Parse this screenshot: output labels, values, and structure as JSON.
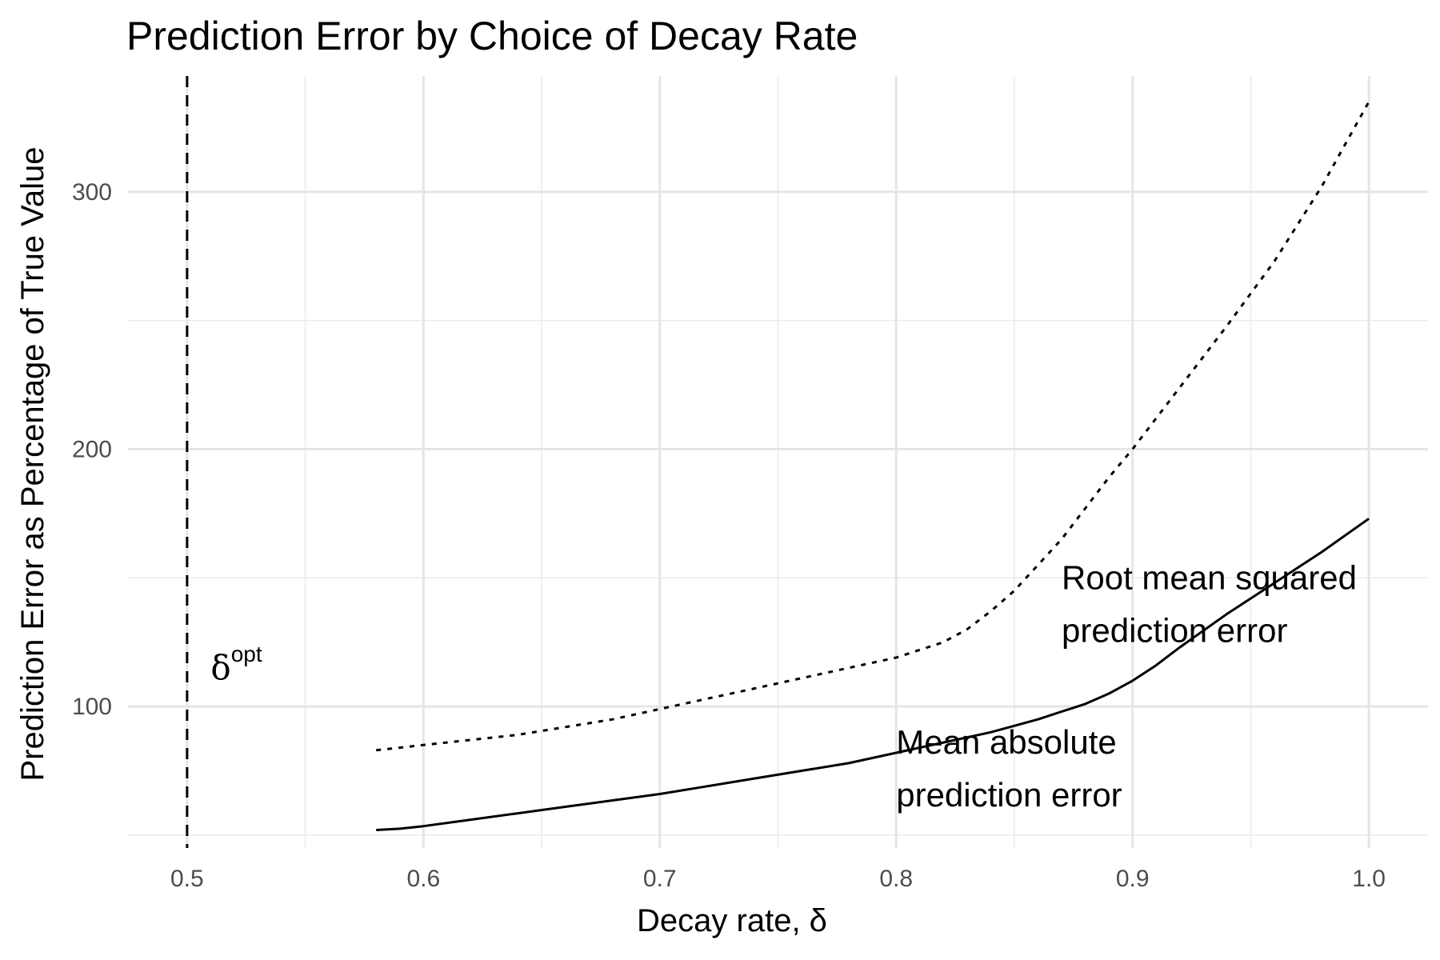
{
  "chart_data": {
    "type": "line",
    "title": "Prediction Error by Choice of Decay Rate",
    "xlabel": "Decay rate, δ",
    "ylabel": "Prediction Error as Percentage of True Value",
    "xlim": [
      0.475,
      1.025
    ],
    "ylim": [
      45,
      345
    ],
    "xticks": [
      0.5,
      0.6,
      0.7,
      0.8,
      0.9,
      1.0
    ],
    "xtick_labels": [
      "0.5",
      "0.6",
      "0.7",
      "0.8",
      "0.9",
      "1.0"
    ],
    "yticks": [
      100,
      200,
      300
    ],
    "ytick_labels": [
      "100",
      "200",
      "300"
    ],
    "grid": true,
    "legend": "none",
    "vline": {
      "x": 0.5,
      "style": "dashed",
      "label_base": "δ",
      "label_sup": "opt",
      "label_x": 0.51,
      "label_y": 115
    },
    "series": [
      {
        "style": "dotted",
        "x": [
          0.58,
          0.6,
          0.62,
          0.64,
          0.66,
          0.68,
          0.7,
          0.72,
          0.74,
          0.76,
          0.78,
          0.8,
          0.82,
          0.83,
          0.84,
          0.85,
          0.86,
          0.87,
          0.88,
          0.89,
          0.9,
          0.92,
          0.94,
          0.96,
          0.98,
          1.0
        ],
        "values": [
          83,
          85,
          87,
          89,
          92,
          95,
          99,
          103,
          107,
          111,
          115,
          119,
          125,
          130,
          137,
          145,
          155,
          165,
          177,
          189,
          200,
          224,
          248,
          273,
          302,
          335
        ]
      },
      {
        "style": "solid",
        "x": [
          0.58,
          0.59,
          0.6,
          0.62,
          0.64,
          0.66,
          0.68,
          0.7,
          0.72,
          0.74,
          0.76,
          0.78,
          0.8,
          0.82,
          0.84,
          0.86,
          0.87,
          0.88,
          0.89,
          0.9,
          0.91,
          0.92,
          0.94,
          0.96,
          0.98,
          1.0
        ],
        "values": [
          52,
          52.5,
          53.5,
          56,
          58.5,
          61,
          63.5,
          66,
          69,
          72,
          75,
          78,
          82,
          86,
          90,
          95,
          98,
          101,
          105,
          110,
          116,
          123,
          136,
          148,
          160,
          173
        ]
      }
    ],
    "annotations": [
      {
        "lines": [
          "Root mean squared",
          "prediction error"
        ],
        "x": 0.87,
        "y": 150
      },
      {
        "lines": [
          "Mean absolute",
          "prediction error"
        ],
        "x": 0.8,
        "y": 86
      }
    ]
  }
}
